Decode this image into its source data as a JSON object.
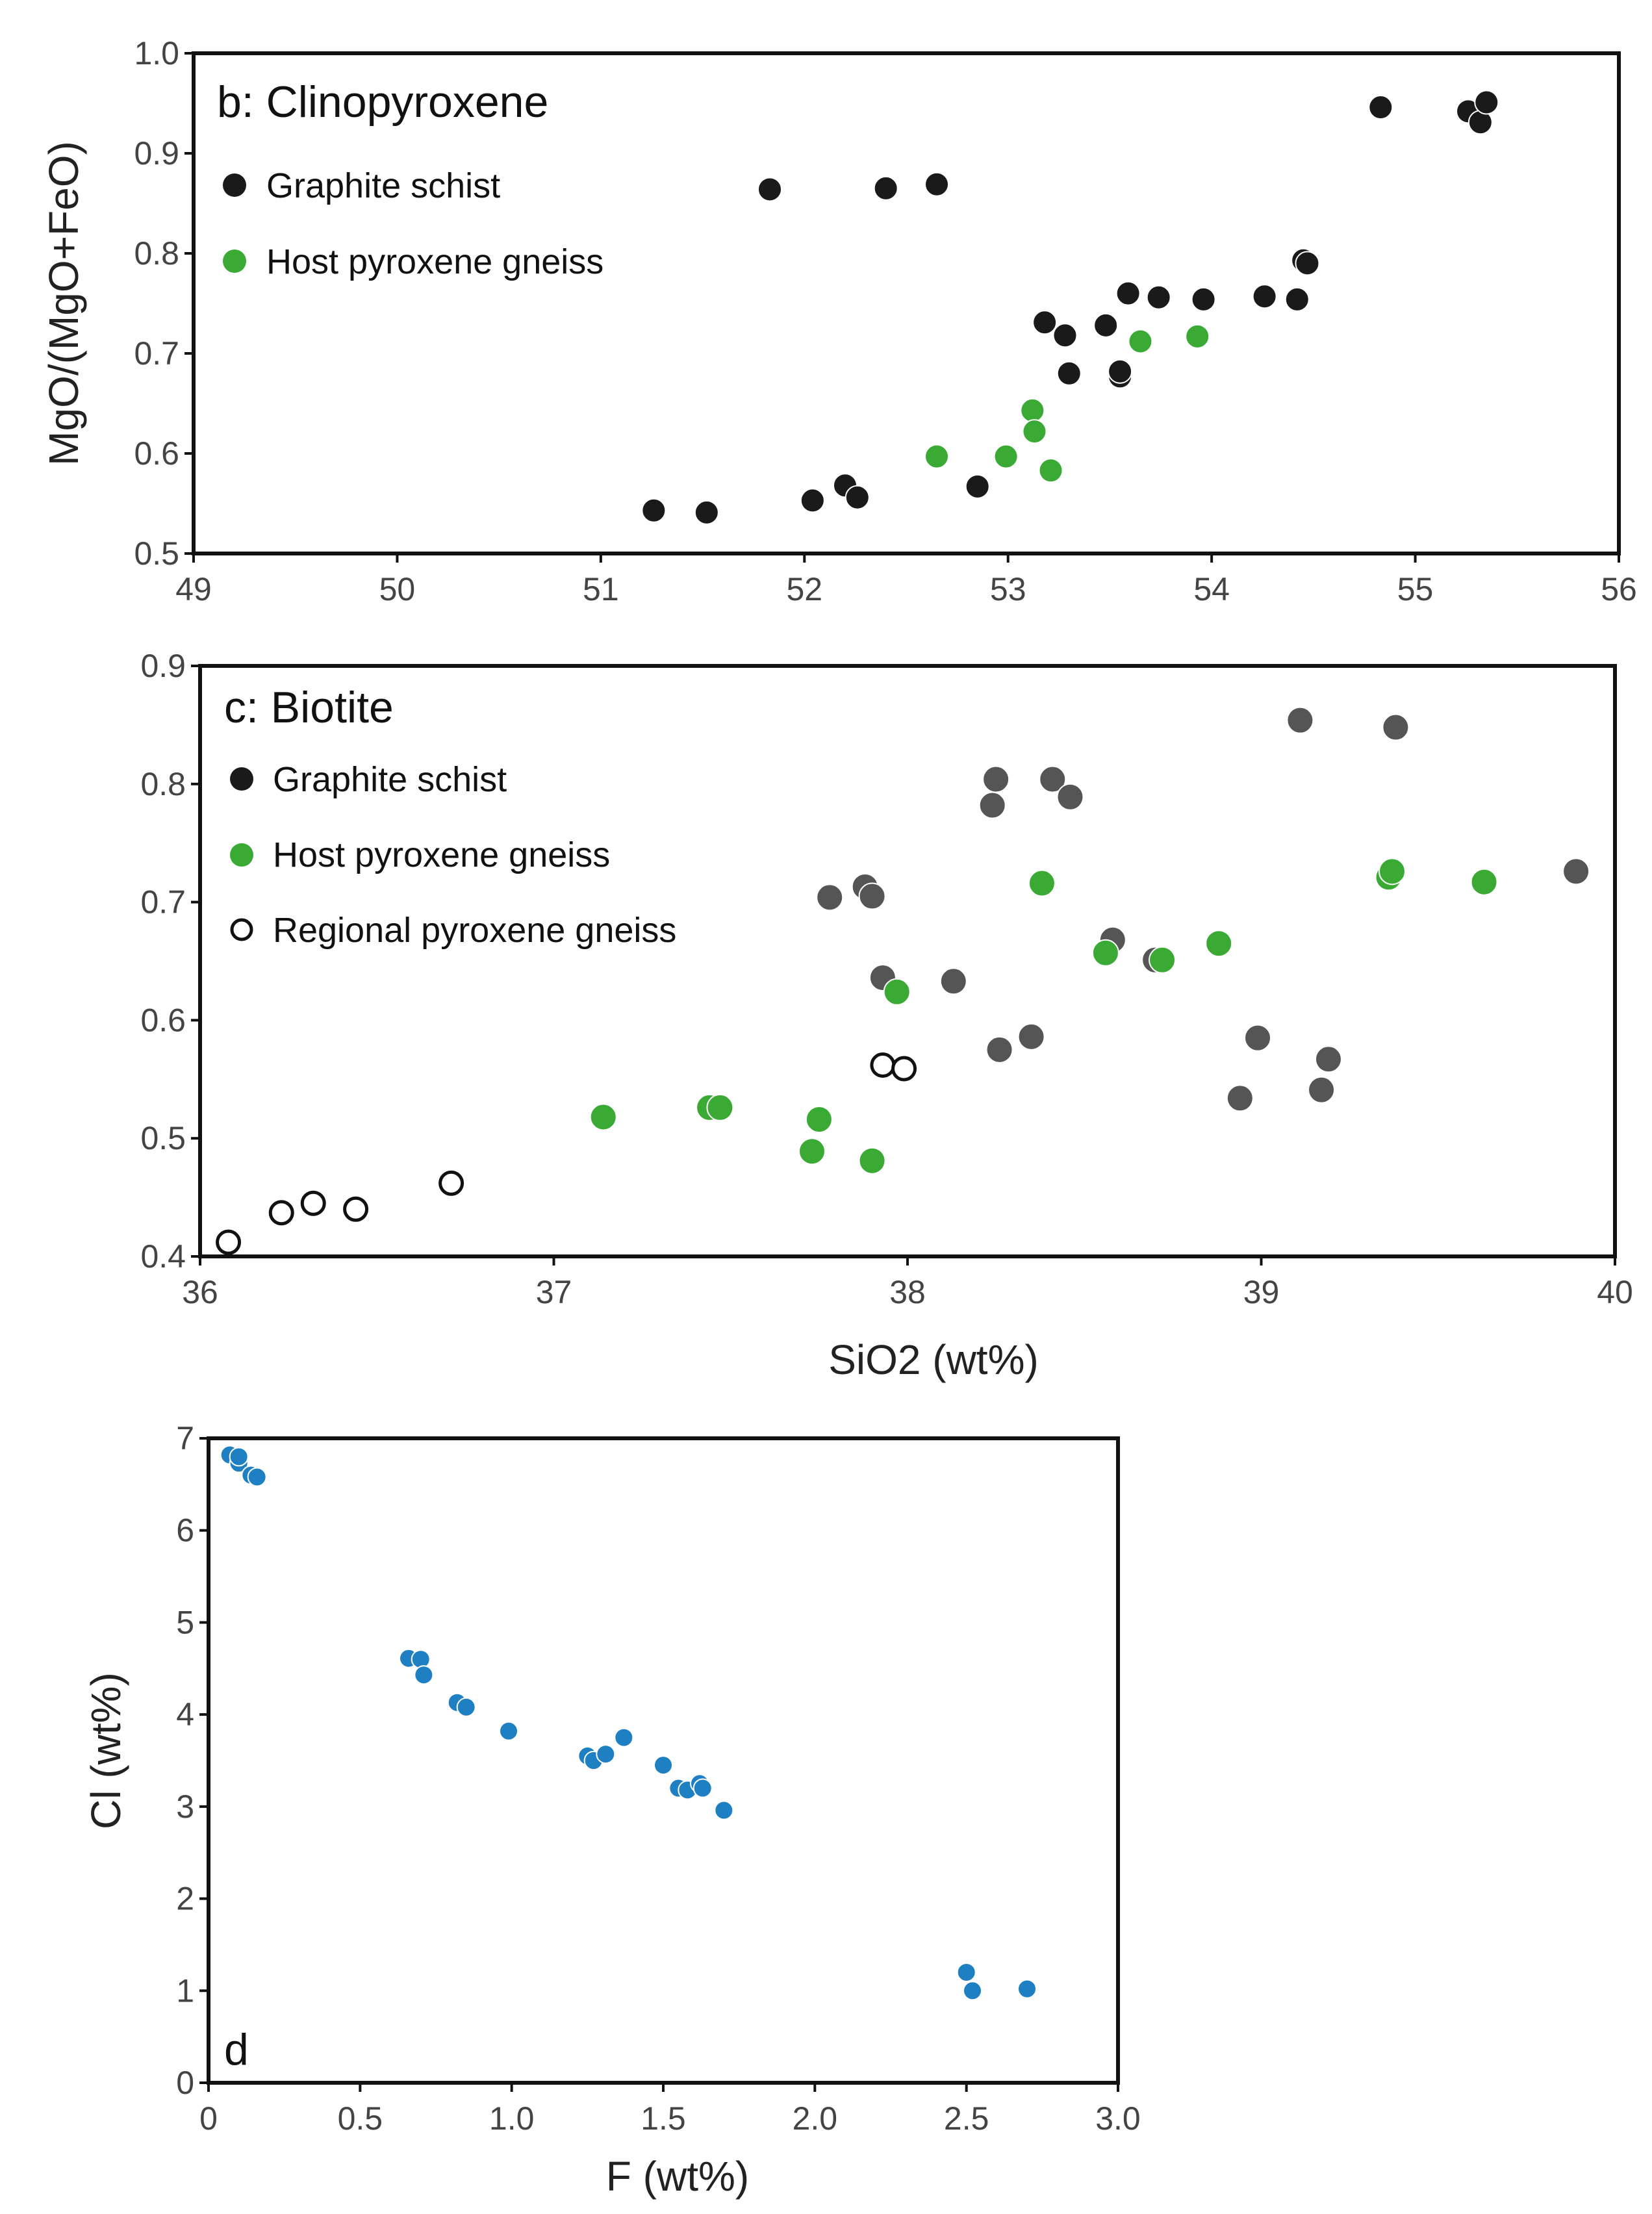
{
  "chart_data": [
    {
      "type": "scatter",
      "panel": "b",
      "title": "b: Clinopyroxene",
      "xlabel": "",
      "ylabel": "MgO/(MgO+FeO)",
      "xlim": [
        49,
        56
      ],
      "ylim": [
        0.5,
        1.0
      ],
      "xticks": [
        "49",
        "50",
        "51",
        "52",
        "53",
        "54",
        "55",
        "56"
      ],
      "yticks": [
        "0.5",
        "0.6",
        "0.7",
        "0.8",
        "0.9",
        "1.0"
      ],
      "grid": false,
      "legend_position": "top-left",
      "series": [
        {
          "name": "Graphite schist",
          "color": "#1a1a1a",
          "marker": "filled-circle",
          "points": [
            [
              51.26,
              0.543
            ],
            [
              51.52,
              0.541
            ],
            [
              51.83,
              0.864
            ],
            [
              52.04,
              0.553
            ],
            [
              52.2,
              0.568
            ],
            [
              52.26,
              0.556
            ],
            [
              52.4,
              0.865
            ],
            [
              52.65,
              0.869
            ],
            [
              52.85,
              0.567
            ],
            [
              53.18,
              0.731
            ],
            [
              53.28,
              0.718
            ],
            [
              53.3,
              0.68
            ],
            [
              53.48,
              0.728
            ],
            [
              53.55,
              0.677
            ],
            [
              53.55,
              0.682
            ],
            [
              53.59,
              0.76
            ],
            [
              53.74,
              0.756
            ],
            [
              53.96,
              0.754
            ],
            [
              54.26,
              0.757
            ],
            [
              54.42,
              0.754
            ],
            [
              54.45,
              0.793
            ],
            [
              54.47,
              0.79
            ],
            [
              54.83,
              0.946
            ],
            [
              55.26,
              0.942
            ],
            [
              55.32,
              0.931
            ],
            [
              55.35,
              0.951
            ]
          ]
        },
        {
          "name": "Host pyroxene gneiss",
          "color": "#3aaa35",
          "marker": "filled-circle",
          "points": [
            [
              52.65,
              0.597
            ],
            [
              52.99,
              0.597
            ],
            [
              53.12,
              0.643
            ],
            [
              53.13,
              0.622
            ],
            [
              53.21,
              0.583
            ],
            [
              53.65,
              0.712
            ],
            [
              53.93,
              0.717
            ]
          ]
        }
      ]
    },
    {
      "type": "scatter",
      "panel": "c",
      "title": "c: Biotite",
      "xlabel": "SiO2 (wt%)",
      "ylabel": "",
      "xlim": [
        36,
        40
      ],
      "ylim": [
        0.4,
        0.9
      ],
      "xticks": [
        "36",
        "37",
        "38",
        "39",
        "40"
      ],
      "yticks": [
        "0.4",
        "0.5",
        "0.6",
        "0.7",
        "0.8",
        "0.9"
      ],
      "grid": false,
      "legend_position": "top-left",
      "series": [
        {
          "name": "Graphite schist",
          "color": "#555555",
          "marker": "filled-circle",
          "points": [
            [
              37.78,
              0.704
            ],
            [
              37.88,
              0.713
            ],
            [
              37.9,
              0.705
            ],
            [
              37.93,
              0.636
            ],
            [
              38.13,
              0.633
            ],
            [
              38.24,
              0.782
            ],
            [
              38.25,
              0.804
            ],
            [
              38.26,
              0.575
            ],
            [
              38.35,
              0.586
            ],
            [
              38.41,
              0.804
            ],
            [
              38.46,
              0.789
            ],
            [
              38.58,
              0.668
            ],
            [
              38.7,
              0.651
            ],
            [
              38.94,
              0.534
            ],
            [
              38.99,
              0.585
            ],
            [
              39.11,
              0.854
            ],
            [
              39.17,
              0.541
            ],
            [
              39.19,
              0.567
            ],
            [
              39.38,
              0.848
            ],
            [
              39.89,
              0.726
            ]
          ]
        },
        {
          "name": "Host pyroxene gneiss",
          "color": "#3aaa35",
          "marker": "filled-circle",
          "points": [
            [
              37.14,
              0.518
            ],
            [
              37.44,
              0.526
            ],
            [
              37.47,
              0.526
            ],
            [
              37.73,
              0.489
            ],
            [
              37.75,
              0.516
            ],
            [
              37.9,
              0.481
            ],
            [
              37.97,
              0.624
            ],
            [
              38.38,
              0.716
            ],
            [
              38.56,
              0.657
            ],
            [
              38.72,
              0.651
            ],
            [
              38.88,
              0.665
            ],
            [
              39.36,
              0.721
            ],
            [
              39.37,
              0.726
            ],
            [
              39.63,
              0.717
            ]
          ]
        },
        {
          "name": "Regional pyroxene gneiss",
          "color": "#111111",
          "marker": "open-circle",
          "points": [
            [
              36.08,
              0.412
            ],
            [
              36.23,
              0.437
            ],
            [
              36.32,
              0.445
            ],
            [
              36.44,
              0.44
            ],
            [
              36.71,
              0.462
            ],
            [
              37.93,
              0.562
            ],
            [
              37.99,
              0.559
            ]
          ]
        }
      ]
    },
    {
      "type": "scatter",
      "panel": "d",
      "title": "d",
      "xlabel": "F (wt%)",
      "ylabel": "Cl (wt%)",
      "xlim": [
        0,
        3.0
      ],
      "ylim": [
        0,
        7
      ],
      "xticks": [
        "0",
        "0.5",
        "1.0",
        "1.5",
        "2.0",
        "2.5",
        "3.0"
      ],
      "yticks": [
        "0",
        "1",
        "2",
        "3",
        "4",
        "5",
        "6",
        "7"
      ],
      "grid": false,
      "legend_position": "none",
      "series": [
        {
          "color": "#1f7fc3",
          "marker": "filled-circle",
          "points": [
            [
              0.07,
              6.82
            ],
            [
              0.1,
              6.73
            ],
            [
              0.1,
              6.8
            ],
            [
              0.14,
              6.6
            ],
            [
              0.16,
              6.58
            ],
            [
              0.66,
              4.61
            ],
            [
              0.7,
              4.6
            ],
            [
              0.71,
              4.43
            ],
            [
              0.82,
              4.13
            ],
            [
              0.85,
              4.08
            ],
            [
              0.99,
              3.82
            ],
            [
              1.25,
              3.55
            ],
            [
              1.27,
              3.5
            ],
            [
              1.31,
              3.57
            ],
            [
              1.37,
              3.75
            ],
            [
              1.5,
              3.45
            ],
            [
              1.55,
              3.2
            ],
            [
              1.58,
              3.18
            ],
            [
              1.62,
              3.25
            ],
            [
              1.63,
              3.2
            ],
            [
              1.7,
              2.96
            ],
            [
              2.5,
              1.2
            ],
            [
              2.52,
              1.0
            ],
            [
              2.7,
              1.02
            ]
          ]
        }
      ]
    }
  ]
}
